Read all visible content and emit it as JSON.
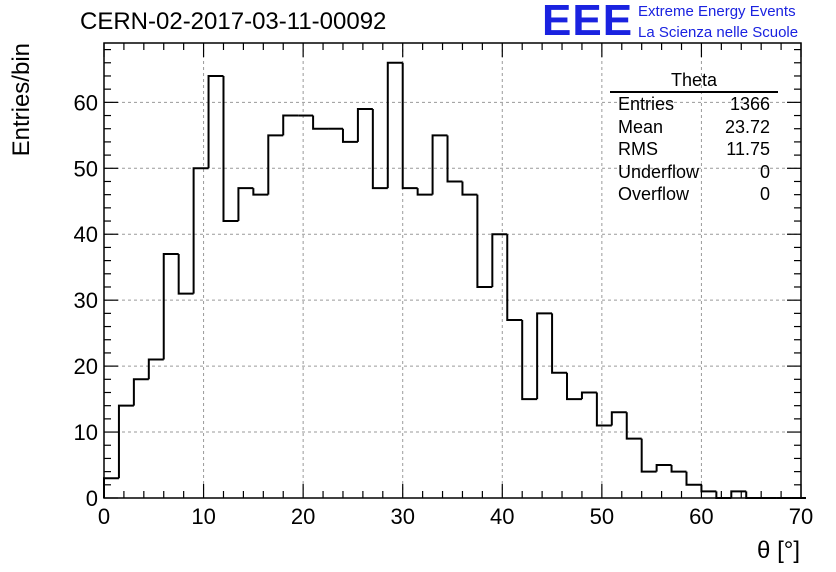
{
  "header": {
    "run_title": "CERN-02-2017-03-11-00092"
  },
  "logo": {
    "mark": "EEE",
    "line1": "Extreme Energy Events",
    "line2": "La Scienza nelle Scuole",
    "color": "#1a22e0"
  },
  "stats": {
    "title": "Theta",
    "rows": [
      {
        "label": "Entries",
        "value": "1366"
      },
      {
        "label": "Mean",
        "value": "23.72"
      },
      {
        "label": "RMS",
        "value": "11.75"
      },
      {
        "label": "Underflow",
        "value": "0"
      },
      {
        "label": "Overflow",
        "value": "0"
      }
    ]
  },
  "chart_data": {
    "type": "bar",
    "style": "step-histogram",
    "title": "",
    "xlabel": "θ [°]",
    "ylabel": "Entries/bin",
    "xlim": [
      0,
      70
    ],
    "ylim": [
      0,
      69
    ],
    "grid": true,
    "x_ticks": [
      0,
      10,
      20,
      30,
      40,
      50,
      60,
      70
    ],
    "y_ticks": [
      0,
      10,
      20,
      30,
      40,
      50,
      60
    ],
    "bin_width": 1.5,
    "bin_edges_start": 0,
    "values": [
      3,
      14,
      18,
      21,
      37,
      31,
      50,
      64,
      42,
      47,
      46,
      55,
      58,
      58,
      56,
      56,
      54,
      59,
      47,
      66,
      47,
      46,
      55,
      48,
      46,
      32,
      40,
      27,
      15,
      28,
      19,
      15,
      16,
      11,
      13,
      9,
      4,
      5,
      4,
      2,
      1,
      0,
      1,
      0,
      0,
      0,
      0
    ],
    "line_color": "#000000"
  }
}
